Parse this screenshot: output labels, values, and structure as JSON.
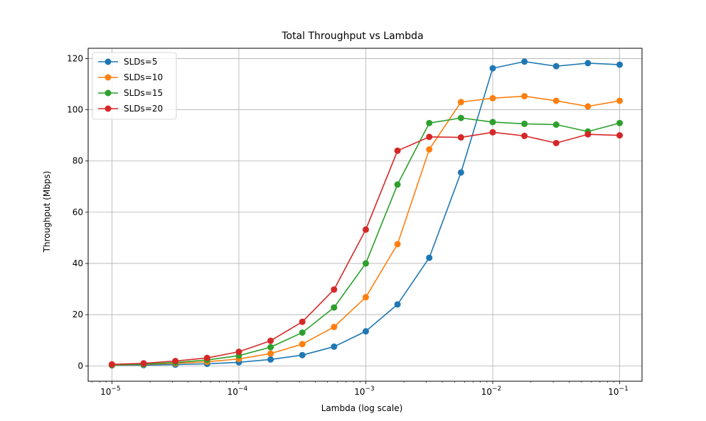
{
  "chart_data": {
    "type": "line",
    "title": "Total Throughput vs Lambda",
    "xlabel": "Lambda (log scale)",
    "ylabel": "Throughput (Mbps)",
    "xscale": "log",
    "xlim": [
      6.5e-06,
      0.15
    ],
    "ylim": [
      -6,
      124
    ],
    "grid": true,
    "legend_position": "top-left",
    "x_ticks": [
      {
        "value": 1e-05,
        "label": "10",
        "exp": "−5"
      },
      {
        "value": 0.0001,
        "label": "10",
        "exp": "−4"
      },
      {
        "value": 0.001,
        "label": "10",
        "exp": "−3"
      },
      {
        "value": 0.01,
        "label": "10",
        "exp": "−2"
      },
      {
        "value": 0.1,
        "label": "10",
        "exp": "−1"
      }
    ],
    "y_ticks": [
      0,
      20,
      40,
      60,
      80,
      100,
      120
    ],
    "x": [
      1e-05,
      1.778e-05,
      3.162e-05,
      5.623e-05,
      0.0001,
      0.0001778,
      0.0003162,
      0.0005623,
      0.001,
      0.001778,
      0.003162,
      0.005623,
      0.01,
      0.01778,
      0.03162,
      0.05623,
      0.1
    ],
    "series": [
      {
        "name": "SLDs=5",
        "color": "#1f77b4",
        "values": [
          0.2,
          0.3,
          0.5,
          0.8,
          1.4,
          2.5,
          4.2,
          7.5,
          13.5,
          24.0,
          42.2,
          75.5,
          116.2,
          118.8,
          117.0,
          118.2,
          117.6
        ]
      },
      {
        "name": "SLDs=10",
        "color": "#ff7f0e",
        "values": [
          0.3,
          0.6,
          1.0,
          1.6,
          2.7,
          4.8,
          8.5,
          15.2,
          26.8,
          47.5,
          84.5,
          103.0,
          104.5,
          105.3,
          103.5,
          101.3,
          103.5
        ]
      },
      {
        "name": "SLDs=15",
        "color": "#2ca02c",
        "values": [
          0.4,
          0.7,
          1.3,
          2.3,
          4.0,
          7.3,
          13.0,
          22.8,
          40.0,
          70.8,
          94.8,
          96.8,
          95.2,
          94.5,
          94.2,
          91.5,
          94.8
        ]
      },
      {
        "name": "SLDs=20",
        "color": "#d62728",
        "values": [
          0.6,
          1.0,
          1.9,
          3.1,
          5.5,
          9.8,
          17.2,
          29.8,
          53.2,
          84.0,
          89.4,
          89.2,
          91.2,
          89.8,
          87.0,
          90.4,
          90.0
        ]
      }
    ]
  }
}
